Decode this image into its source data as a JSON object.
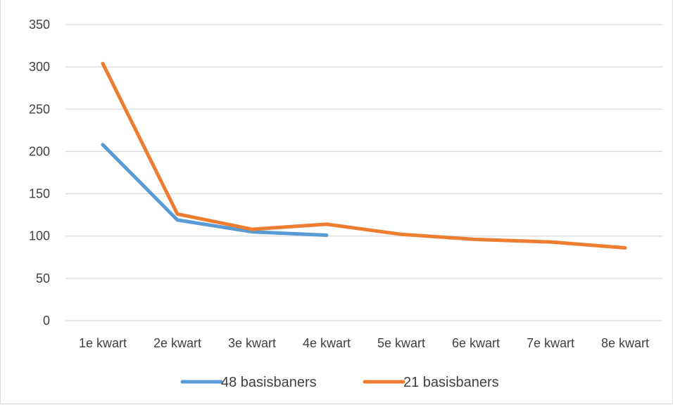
{
  "chart_data": {
    "type": "line",
    "title": "",
    "xlabel": "",
    "ylabel": "",
    "categories": [
      "1e kwart",
      "2e kwart",
      "3e kwart",
      "4e kwart",
      "5e kwart",
      "6e kwart",
      "7e kwart",
      "8e kwart"
    ],
    "ylim": [
      0,
      350
    ],
    "yticks": [
      0,
      50,
      100,
      150,
      200,
      250,
      300,
      350
    ],
    "grid": true,
    "legend": "bottom",
    "series": [
      {
        "name": "48 basisbaners",
        "color": "#5B9BD5",
        "values": [
          208,
          119,
          105,
          101,
          null,
          null,
          null,
          null
        ]
      },
      {
        "name": "21 basisbaners",
        "color": "#ED7D31",
        "values": [
          304,
          126,
          108,
          114,
          102,
          96,
          93,
          86
        ]
      }
    ]
  }
}
